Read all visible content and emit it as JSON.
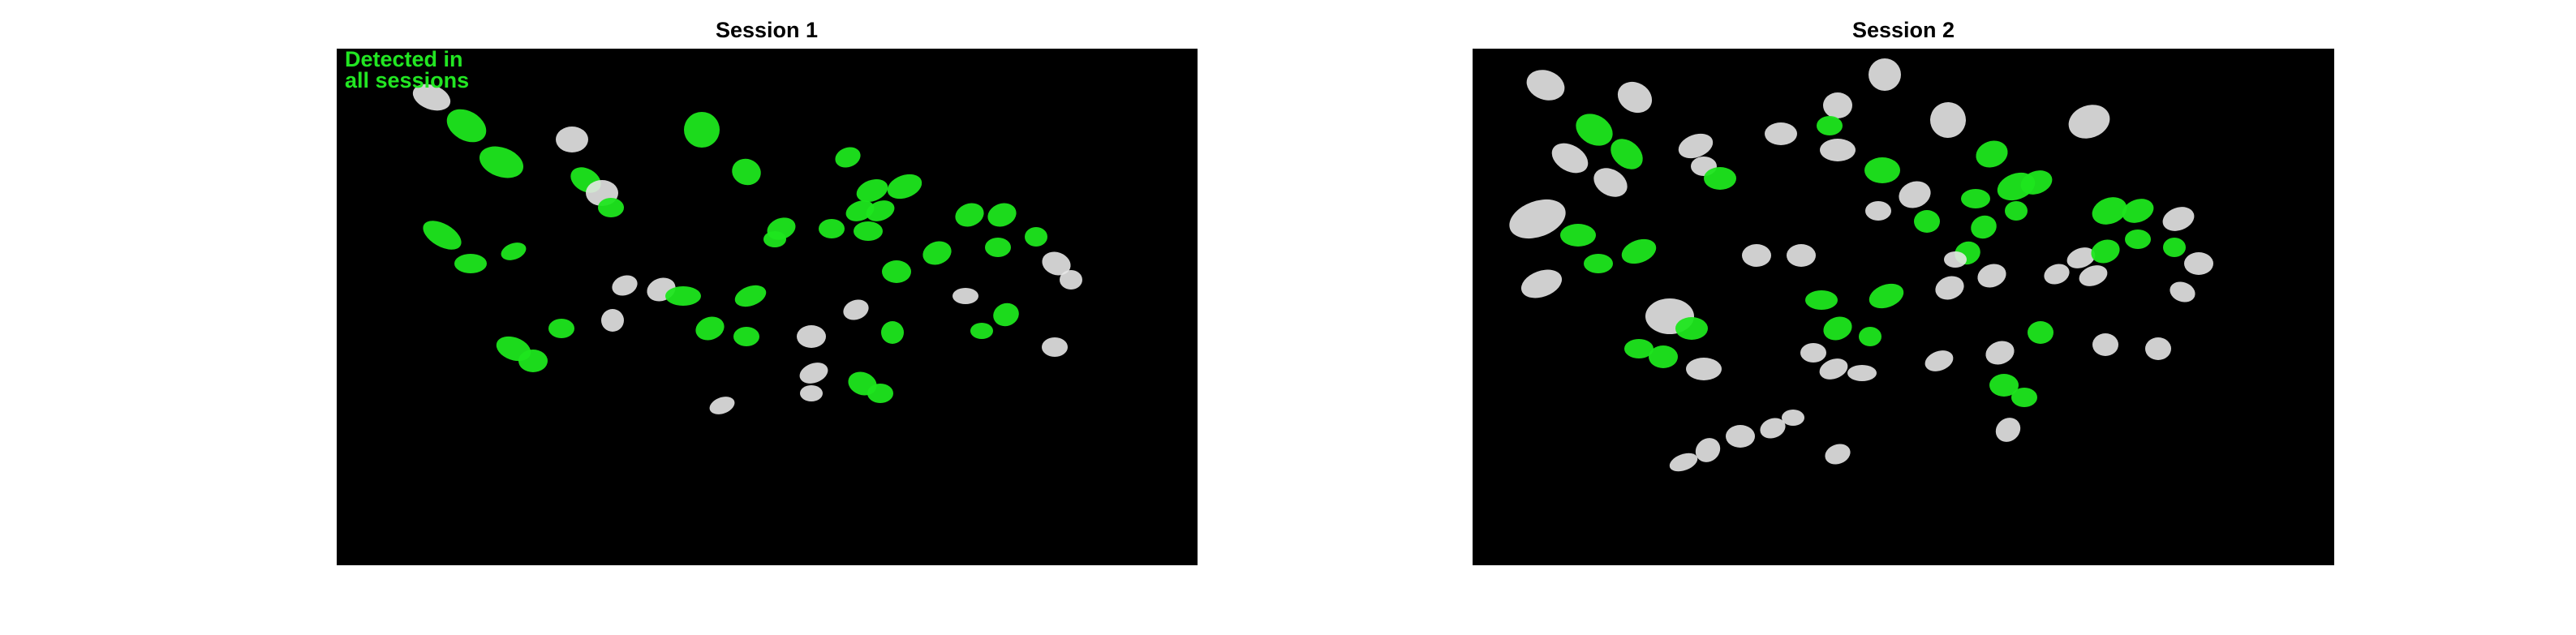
{
  "panels": [
    {
      "title": "Session 1",
      "annotation_lines": [
        "Detected in",
        "all sessions"
      ]
    },
    {
      "title": "Session 2"
    }
  ],
  "colors": {
    "background": "#000000",
    "detected_all_sessions": "#1ee61e",
    "other_cells": "#e6e6e6",
    "annotation_text": "#22e622"
  }
}
